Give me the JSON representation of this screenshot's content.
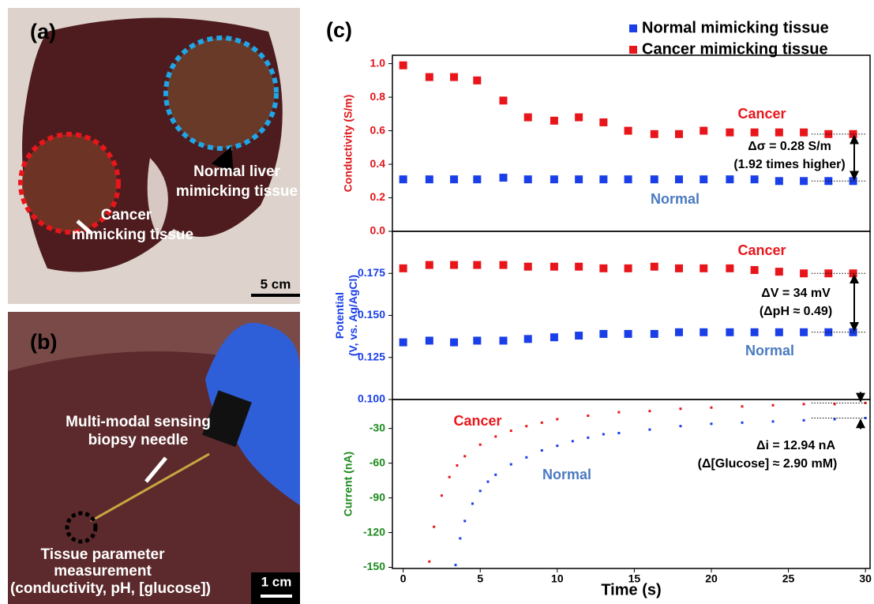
{
  "photo_a": {
    "label": "(a)",
    "texts": [
      "Normal liver",
      "mimicking tissue",
      "Cancer",
      "mimicking tissue"
    ],
    "scale_bar": "5 cm"
  },
  "photo_b": {
    "label": "(b)",
    "texts": [
      "Multi-modal sensing",
      "biopsy needle",
      "Tissue parameter",
      "measurement",
      "(conductivity, pH, [glucose])"
    ],
    "scale_bar": "1 cm"
  },
  "chart_data": [
    {
      "type": "scatter",
      "panel_label": "(c)",
      "legend": "top-right",
      "ylabel": [
        "Conductivity (S/m)"
      ],
      "ylabel_color": "#e0161b",
      "xlim": [
        -0.7,
        30.3
      ],
      "ylim": [
        0,
        1.05
      ],
      "yticks": [
        {
          "value": 0,
          "label": "0.0"
        },
        0.2,
        0.4,
        0.6,
        0.8,
        {
          "value": 1,
          "label": "1.0"
        }
      ],
      "x": [
        0,
        1.7,
        3.3,
        4.8,
        6.5,
        8.1,
        9.8,
        11.4,
        13.0,
        14.6,
        16.3,
        17.9,
        19.5,
        21.2,
        22.8,
        24.4,
        26.0,
        27.6,
        29.2
      ],
      "series": [
        {
          "name": "Normal mimicking tissue",
          "color": "#1a3fe8",
          "values": [
            0.31,
            0.31,
            0.31,
            0.31,
            0.32,
            0.31,
            0.31,
            0.31,
            0.31,
            0.31,
            0.31,
            0.31,
            0.31,
            0.31,
            0.31,
            0.3,
            0.3,
            0.3,
            0.3
          ]
        },
        {
          "name": "Cancer mimicking tissue",
          "color": "#e8161b",
          "values": [
            0.99,
            0.92,
            0.92,
            0.9,
            0.78,
            0.68,
            0.66,
            0.68,
            0.65,
            0.6,
            0.58,
            0.58,
            0.6,
            0.59,
            0.59,
            0.59,
            0.59,
            0.58,
            0.58
          ]
        }
      ],
      "annotations": [
        {
          "text": "Cancer",
          "color": "#e8161b"
        },
        {
          "text": "Normal",
          "color": "#4a7ac0"
        },
        {
          "text": "Δσ = 0.28 S/m",
          "color": "#000000"
        },
        {
          "text": "(1.92 times higher)",
          "color": "#000000"
        }
      ]
    },
    {
      "type": "scatter",
      "ylabel": [
        "Potential",
        "(V, vs. Ag/AgCl)"
      ],
      "ylabel_color": "#1a3fe8",
      "xlim": [
        -0.7,
        30.3
      ],
      "ylim": [
        0.1,
        0.2
      ],
      "yticks": [
        {
          "value": 0.1,
          "label": "0.100"
        },
        {
          "value": 0.125,
          "label": "0.125"
        },
        {
          "value": 0.15,
          "label": "0.150"
        },
        {
          "value": 0.175,
          "label": "0.175"
        }
      ],
      "x": [
        0,
        1.7,
        3.3,
        4.8,
        6.5,
        8.1,
        9.8,
        11.4,
        13.0,
        14.6,
        16.3,
        17.9,
        19.5,
        21.2,
        22.8,
        24.4,
        26.0,
        27.6,
        29.2
      ],
      "series": [
        {
          "color": "#1a3fe8",
          "values": [
            0.134,
            0.135,
            0.134,
            0.135,
            0.135,
            0.136,
            0.137,
            0.138,
            0.139,
            0.139,
            0.139,
            0.14,
            0.14,
            0.14,
            0.14,
            0.14,
            0.14,
            0.14,
            0.14
          ]
        },
        {
          "color": "#e8161b",
          "values": [
            0.178,
            0.18,
            0.18,
            0.18,
            0.18,
            0.179,
            0.179,
            0.179,
            0.178,
            0.178,
            0.179,
            0.178,
            0.178,
            0.178,
            0.177,
            0.176,
            0.175,
            0.175,
            0.175
          ]
        }
      ],
      "annotations": [
        {
          "text": "Cancer",
          "color": "#e8161b"
        },
        {
          "text": "Normal",
          "color": "#4a7ac0"
        },
        {
          "text": "ΔV = 34 mV",
          "color": "#000000"
        },
        {
          "text": "(ΔpH ≈ 0.49)",
          "color": "#000000"
        }
      ]
    },
    {
      "type": "dots",
      "ylabel": [
        "Current (nA)"
      ],
      "ylabel_color": "#1c8a1c",
      "xlabel": "Time (s)",
      "xlim": [
        -0.7,
        30.3
      ],
      "ylim": [
        -151,
        -5
      ],
      "xticks": [
        0,
        5,
        10,
        15,
        20,
        25,
        30
      ],
      "yticks": [
        -150,
        -120,
        -90,
        -60,
        -30
      ],
      "series": [
        {
          "color": "#e8161b",
          "x": [
            1.7,
            2,
            2.5,
            3,
            3.5,
            4,
            5,
            6,
            7,
            8,
            9,
            10,
            12,
            14,
            16,
            18,
            20,
            22,
            24,
            26,
            28,
            30
          ],
          "values": [
            -145,
            -115,
            -88,
            -72,
            -62,
            -54,
            -44,
            -37,
            -32,
            -28,
            -25,
            -22,
            -19,
            -16,
            -15,
            -13,
            -12,
            -11,
            -10,
            -9,
            -9,
            -8
          ]
        },
        {
          "color": "#1a3fe8",
          "x": [
            3.4,
            3.7,
            4,
            4.5,
            5,
            5.5,
            6,
            7,
            8,
            9,
            10,
            11,
            12,
            13,
            14,
            16,
            18,
            20,
            22,
            24,
            26,
            28,
            30
          ],
          "values": [
            -148,
            -125,
            -110,
            -95,
            -84,
            -76,
            -70,
            -61,
            -55,
            -49,
            -45,
            -41,
            -38,
            -35,
            -34,
            -31,
            -28,
            -26,
            -25,
            -24,
            -23,
            -22,
            -21
          ]
        }
      ],
      "annotations": [
        {
          "text": "Cancer",
          "color": "#e8161b"
        },
        {
          "text": "Normal",
          "color": "#4a7ac0"
        },
        {
          "text": "Δi = 12.94 nA",
          "color": "#000000"
        },
        {
          "text": "(Δ[Glucose] ≈ 2.90 mM)",
          "color": "#000000"
        }
      ]
    }
  ]
}
